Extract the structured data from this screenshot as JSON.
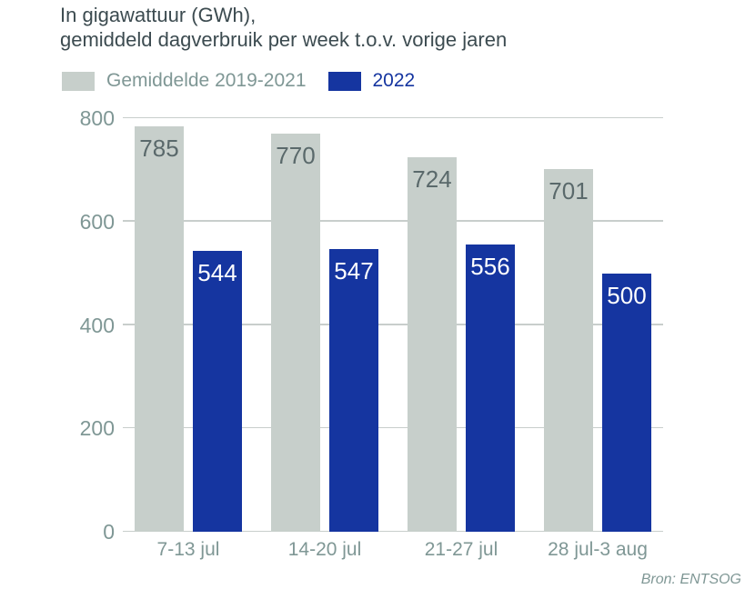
{
  "title": {
    "line1": "In gigawattuur (GWh),",
    "line2": "gemiddeld dagverbruik per week t.o.v. vorige jaren"
  },
  "legend": {
    "items": [
      {
        "label": "Gemiddelde 2019-2021",
        "swatch_color": "#c7cfcb",
        "text_color": "#7f9795"
      },
      {
        "label": "2022",
        "swatch_color": "#1535a0",
        "text_color": "#1535a0"
      }
    ]
  },
  "source": "Bron: ENTSOG",
  "colors": {
    "background": "#ffffff",
    "title_text": "#3c4b50",
    "axis_text": "#7f9795",
    "gridline": "#c8cecc",
    "bar_gray": "#c7cfcb",
    "bar_blue": "#1535a0",
    "value_label_on_gray": "#5a696b",
    "value_label_on_blue": "#ffffff"
  },
  "chart_data": {
    "type": "bar",
    "title": "In gigawattuur (GWh), gemiddeld dagverbruik per week t.o.v. vorige jaren",
    "categories": [
      "7-13 jul",
      "14-20 jul",
      "21-27 jul",
      "28 jul-3 aug"
    ],
    "series": [
      {
        "name": "Gemiddelde 2019-2021",
        "values": [
          785,
          770,
          724,
          701
        ],
        "bar_color": "#c7cfcb",
        "value_label_color": "#5a696b"
      },
      {
        "name": "2022",
        "values": [
          544,
          547,
          556,
          500
        ],
        "bar_color": "#1535a0",
        "value_label_color": "#ffffff"
      }
    ],
    "xlabel": "",
    "ylabel": "",
    "ylim": [
      0,
      800
    ],
    "yticks": [
      0,
      200,
      400,
      600,
      800
    ],
    "grid": true,
    "legend_position": "top",
    "value_labels": "inside-top",
    "source": "Bron: ENTSOG"
  }
}
